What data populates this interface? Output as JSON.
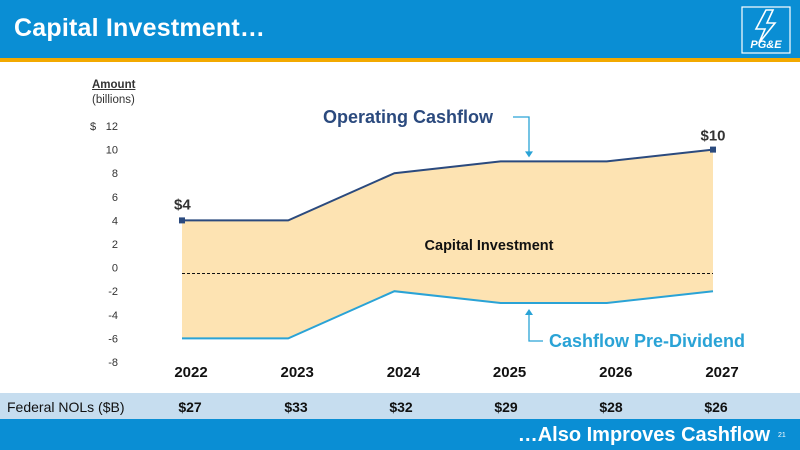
{
  "header": {
    "title": "Capital Investment…",
    "logo_text": "PG&E",
    "colors": {
      "primary": "#0a8ed4",
      "stripe": "#f2a900"
    }
  },
  "chart_data": {
    "type": "area",
    "x": [
      "2022",
      "2023",
      "2024",
      "2025",
      "2026",
      "2027"
    ],
    "series": [
      {
        "name": "Operating Cashflow",
        "values": [
          4,
          4,
          8,
          9,
          9,
          10
        ],
        "color": "#2b4a7e"
      },
      {
        "name": "Cashflow Pre-Dividend",
        "values": [
          -6,
          -6,
          -2,
          -3,
          -3,
          -2
        ],
        "color": "#2aa3d6"
      }
    ],
    "fill_label": "Capital Investment",
    "fill_color": "#fde3b2",
    "ylim": [
      -8,
      12
    ],
    "yticks": [
      "12",
      "10",
      "8",
      "6",
      "4",
      "2",
      "0",
      "-2",
      "-4",
      "-6",
      "-8"
    ],
    "y_currency_prefix": "$",
    "ylabel_title": "Amount",
    "ylabel_unit": "(billions)",
    "dashed_reference_value": -0.5,
    "point_labels": {
      "start": "$4",
      "end": "$10"
    }
  },
  "nols": {
    "label": "Federal NOLs ($B)",
    "values": [
      "$27",
      "$33",
      "$32",
      "$29",
      "$28",
      "$26"
    ]
  },
  "footer": {
    "text": "…Also Improves Cashflow",
    "page_number": "21"
  }
}
